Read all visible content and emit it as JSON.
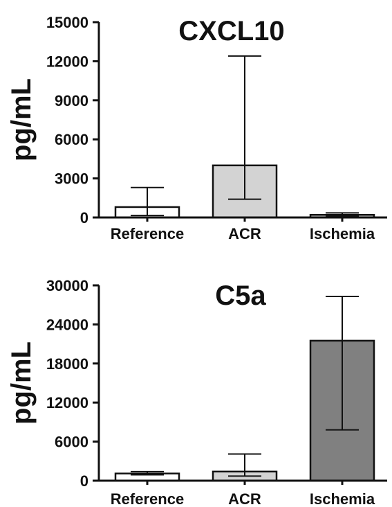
{
  "chart_data": [
    {
      "type": "bar",
      "title": "CXCL10",
      "ylabel": "pg/mL",
      "xlabel": "",
      "categories": [
        "Reference",
        "ACR",
        "Ischemia"
      ],
      "values": [
        800,
        4000,
        200
      ],
      "error_low": [
        150,
        1400,
        100
      ],
      "error_high": [
        2300,
        12400,
        350
      ],
      "ylim": [
        0,
        15000
      ],
      "yticks": [
        0,
        3000,
        6000,
        9000,
        12000,
        15000
      ],
      "ytick_labels": [
        "0",
        "3000",
        "6000",
        "9000",
        "12000",
        "15000"
      ],
      "bar_colors": [
        "#ffffff",
        "#d3d3d3",
        "#d3d3d3"
      ],
      "grid": false
    },
    {
      "type": "bar",
      "title": "C5a",
      "ylabel": "pg/mL",
      "xlabel": "",
      "categories": [
        "Reference",
        "ACR",
        "Ischemia"
      ],
      "values": [
        1100,
        1400,
        21500
      ],
      "error_low": [
        900,
        700,
        7800
      ],
      "error_high": [
        1400,
        4100,
        28300
      ],
      "ylim": [
        0,
        30000
      ],
      "yticks": [
        0,
        6000,
        12000,
        18000,
        24000,
        30000
      ],
      "ytick_labels": [
        "0",
        "6000",
        "12000",
        "18000",
        "24000",
        "30000"
      ],
      "bar_colors": [
        "#ffffff",
        "#d3d3d3",
        "#808080"
      ],
      "grid": false
    }
  ]
}
